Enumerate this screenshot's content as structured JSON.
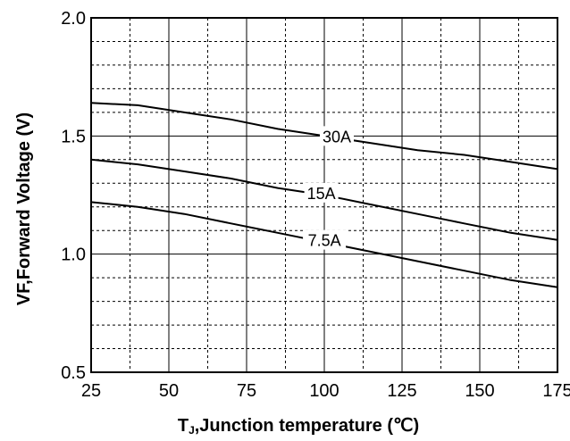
{
  "chart_data": {
    "type": "line",
    "xlabel_main": "T",
    "xlabel_sub": "J",
    "xlabel_rest": ",Junction temperature (℃)",
    "ylabel": "VF,Forward Voltage (V)",
    "xlim": [
      25,
      175
    ],
    "ylim": [
      0.5,
      2.0
    ],
    "x_ticks": [
      25,
      50,
      75,
      100,
      125,
      150,
      175
    ],
    "x_tick_labels": [
      "25",
      "50",
      "75",
      "100",
      "125",
      "150",
      "175"
    ],
    "y_ticks": [
      0.5,
      1.0,
      1.5,
      2.0
    ],
    "y_tick_labels": [
      "0.5",
      "1.0",
      "1.5",
      "2.0"
    ],
    "x_minor_step": 12.5,
    "y_minor_step": 0.1,
    "grid": true,
    "series": [
      {
        "name": "30A",
        "label_x": 100,
        "x": [
          25,
          40,
          55,
          70,
          85,
          100,
          115,
          130,
          145,
          160,
          175
        ],
        "values": [
          1.64,
          1.63,
          1.6,
          1.57,
          1.53,
          1.5,
          1.47,
          1.44,
          1.42,
          1.39,
          1.36
        ]
      },
      {
        "name": "15A",
        "label_x": 95,
        "x": [
          25,
          40,
          55,
          70,
          85,
          100,
          115,
          130,
          145,
          160,
          175
        ],
        "values": [
          1.4,
          1.38,
          1.35,
          1.32,
          1.28,
          1.25,
          1.21,
          1.17,
          1.13,
          1.09,
          1.06
        ]
      },
      {
        "name": "7.5A",
        "label_x": 96,
        "x": [
          25,
          40,
          55,
          70,
          85,
          100,
          115,
          130,
          145,
          160,
          175
        ],
        "values": [
          1.22,
          1.2,
          1.17,
          1.13,
          1.09,
          1.05,
          1.01,
          0.97,
          0.93,
          0.89,
          0.86
        ]
      }
    ]
  }
}
